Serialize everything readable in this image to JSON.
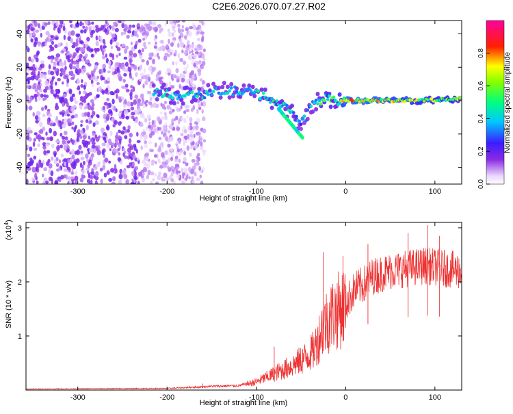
{
  "title": "C2E6.2026.070.07.27.R02",
  "chart_data": [
    {
      "type": "heatmap",
      "title": "C2E6.2026.070.07.27.R02",
      "xlabel": "Height of straight line (km)",
      "ylabel": "Frequency (Hz)",
      "xlim": [
        -358,
        130
      ],
      "ylim": [
        -50,
        48
      ],
      "xticks": [
        -300,
        -200,
        -100,
        0,
        100
      ],
      "xtick_labels": [
        "-300",
        "-200",
        "-100",
        "0",
        "100"
      ],
      "yticks": [
        -40,
        -20,
        0,
        20,
        40
      ],
      "ytick_labels": [
        "-40",
        "-20",
        "0",
        "20",
        "40"
      ],
      "colorbar": {
        "label": "Normalized spectral amplitude",
        "range": [
          0,
          1
        ],
        "ticks": [
          0.0,
          0.2,
          0.4,
          0.6,
          0.8
        ],
        "tick_labels": [
          "0.0",
          "0.2",
          "0.4",
          "0.6",
          "0.8"
        ],
        "colormap": "rainbow (white-violet-blue-cyan-green-yellow-red-magenta)"
      },
      "ridge": [
        {
          "x": -215,
          "f": 6,
          "amp": 0.45
        },
        {
          "x": -190,
          "f": 3,
          "amp": 0.55
        },
        {
          "x": -170,
          "f": 3,
          "amp": 0.5
        },
        {
          "x": -150,
          "f": 5,
          "amp": 0.45
        },
        {
          "x": -130,
          "f": 6,
          "amp": 0.45
        },
        {
          "x": -110,
          "f": 5,
          "amp": 0.5
        },
        {
          "x": -90,
          "f": 3,
          "amp": 0.55
        },
        {
          "x": -75,
          "f": -2,
          "amp": 0.55
        },
        {
          "x": -60,
          "f": -7,
          "amp": 0.5
        },
        {
          "x": -50,
          "f": -15,
          "amp": 0.4
        },
        {
          "x": -35,
          "f": -1,
          "amp": 0.45
        },
        {
          "x": -20,
          "f": 2,
          "amp": 0.7
        },
        {
          "x": -10,
          "f": -1,
          "amp": 0.5
        },
        {
          "x": 0,
          "f": 0,
          "amp": 0.9
        },
        {
          "x": 40,
          "f": 0,
          "amp": 0.85
        },
        {
          "x": 80,
          "f": 0,
          "amp": 0.75
        },
        {
          "x": 130,
          "f": 1,
          "amp": 0.7
        }
      ]
    },
    {
      "type": "line",
      "xlabel": "Height of straight line (km)",
      "ylabel": "SNR (10 * v/v)",
      "yscale_label": "(x10",
      "yscale_exponent": "4",
      "scale": 10000,
      "xlim": [
        -358,
        130
      ],
      "ylim": [
        0,
        31000
      ],
      "xticks": [
        -300,
        -200,
        -100,
        0,
        100
      ],
      "xtick_labels": [
        "-300",
        "-200",
        "-100",
        "0",
        "100"
      ],
      "yticks": [
        10000,
        20000,
        30000
      ],
      "ytick_labels": [
        "1",
        "2",
        "3"
      ],
      "series": [
        {
          "name": "SNR",
          "color": "#ee3333",
          "trend_x": [
            -358,
            -200,
            -160,
            -150,
            -120,
            -100,
            -80,
            -60,
            -45,
            -35,
            -25,
            -15,
            -5,
            0,
            10,
            20,
            30,
            50,
            70,
            90,
            110,
            130
          ],
          "trend_y": [
            200,
            300,
            600,
            700,
            800,
            1500,
            3000,
            4500,
            6000,
            7500,
            12000,
            14000,
            15000,
            16000,
            18500,
            19500,
            21000,
            22000,
            22500,
            23000,
            22500,
            22000
          ],
          "spikes": [
            {
              "x": -160,
              "y": 1200
            },
            {
              "x": -80,
              "y": 8000
            },
            {
              "x": -25,
              "y": 25500
            },
            {
              "x": -3,
              "y": 24800
            },
            {
              "x": 25,
              "y": 27000
            },
            {
              "x": 70,
              "y": 29000
            },
            {
              "x": 92,
              "y": 30500
            },
            {
              "x": 105,
              "y": 28500
            }
          ]
        }
      ]
    }
  ]
}
